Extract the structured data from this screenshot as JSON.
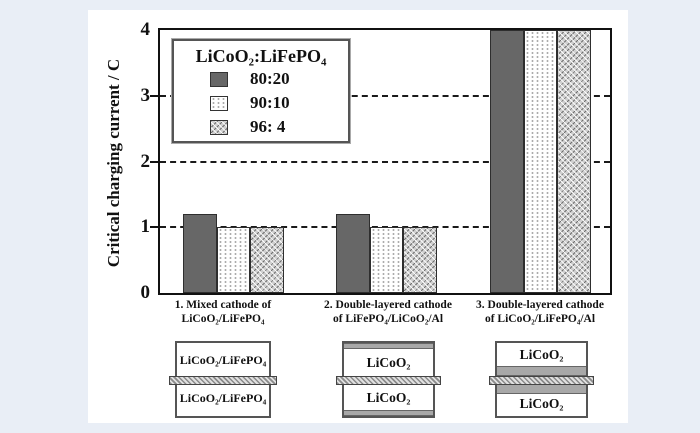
{
  "colors": {
    "page_background": "#e9eef6",
    "figure_background": "#ffffff",
    "bar_dark_gray": "#676767",
    "crosshatch_gray": "#cfcfcf",
    "frame_black": "#111111",
    "diagram_layer_gray": "#a8a8a8"
  },
  "figure": {
    "ylabel": "Critical charging current / C",
    "legend": {
      "title": "LiCoO₂:LiFePO₄",
      "entries": [
        {
          "label": "80:20",
          "pattern": "solid-dark-gray"
        },
        {
          "label": "90:10",
          "pattern": "dotted"
        },
        {
          "label": "96: 4",
          "pattern": "crosshatch"
        }
      ]
    },
    "groups": [
      {
        "line1": "1. Mixed cathode of",
        "line2": "LiCoO₂/LiFePO₄"
      },
      {
        "line1": "2. Double-layered cathode",
        "line2": "of LiFePO₄/LiCoO₂/Al"
      },
      {
        "line1": "3. Double-layered cathode",
        "line2": "of LiCoO₂/LiFePO₄/Al"
      }
    ],
    "diagrams": [
      {
        "top": "LiCoO₂/LiFePO₄",
        "bottom": "LiCoO₂/LiFePO₄",
        "gray_layers": "none",
        "center": "Al foil (hatched)"
      },
      {
        "top": "LiCoO₂",
        "bottom": "LiCoO₂",
        "gray_layers": "outer",
        "center": "Al foil (hatched)"
      },
      {
        "top": "LiCoO₂",
        "bottom": "LiCoO₂",
        "gray_layers": "inner",
        "center": "Al foil (hatched)"
      }
    ]
  },
  "chart_data": {
    "type": "bar",
    "title": "",
    "xlabel": "",
    "ylabel": "Critical charging current / C",
    "ylim": [
      0,
      4
    ],
    "yticks": [
      0,
      1,
      2,
      3,
      4
    ],
    "dashed_gridlines_at": [
      1,
      2,
      3
    ],
    "grid": "dashed horizontal at 1, 2, 3",
    "legend_title": "LiCoO₂:LiFePO₄",
    "legend_position": "upper-left",
    "categories": [
      "1. Mixed cathode of LiCoO₂/LiFePO₄",
      "2. Double-layered cathode of LiFePO₄/LiCoO₂/Al",
      "3. Double-layered cathode of LiCoO₂/LiFePO₄/Al"
    ],
    "series": [
      {
        "name": "80:20",
        "pattern": "solid-dark-gray",
        "values": [
          1.2,
          1.2,
          4.0
        ]
      },
      {
        "name": "90:10",
        "pattern": "dotted",
        "values": [
          1.0,
          1.0,
          4.0
        ]
      },
      {
        "name": "96: 4",
        "pattern": "crosshatch",
        "values": [
          1.0,
          1.0,
          4.0
        ]
      }
    ],
    "note": "Group 3 bars reach the top of the axis (value ≥ 4, clipped at 4)."
  }
}
